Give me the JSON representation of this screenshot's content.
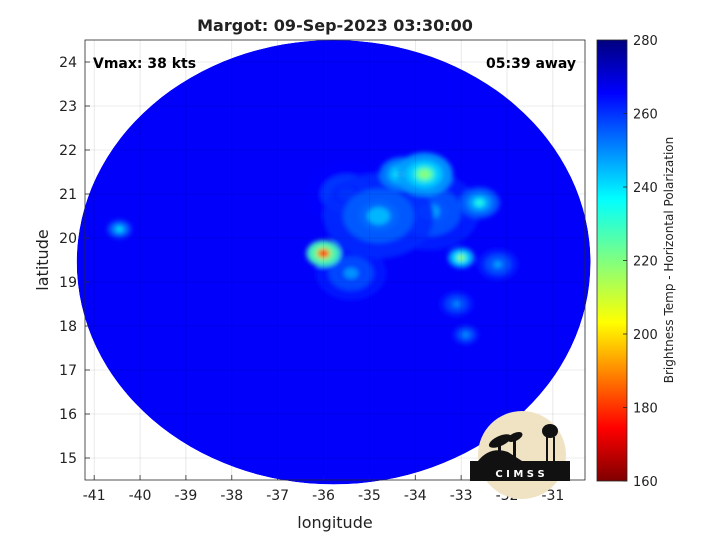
{
  "chart_data": {
    "type": "heatmap",
    "title": "Margot: 09-Sep-2023 03:30:00",
    "annotations": {
      "vmax": "Vmax: 38 kts",
      "time_away": "05:39 away"
    },
    "xlabel": "longitude",
    "ylabel": "latitude",
    "xlim": [
      -41.2,
      -30.3
    ],
    "ylim": [
      14.5,
      24.5
    ],
    "x_ticks": [
      -41,
      -40,
      -39,
      -38,
      -37,
      -36,
      -35,
      -34,
      -33,
      -32,
      -31
    ],
    "y_ticks": [
      15,
      16,
      17,
      18,
      19,
      20,
      21,
      22,
      23,
      24
    ],
    "grid": true,
    "swath": {
      "center": [
        -35.78,
        19.45
      ],
      "radius_x": 5.6,
      "radius_y": 5.05
    },
    "background_value": 266,
    "features": [
      {
        "lon": -36.0,
        "lat": 19.65,
        "value": 178,
        "spread": 0.17
      },
      {
        "lon": -33.8,
        "lat": 21.45,
        "value": 218,
        "spread": 0.28
      },
      {
        "lon": -34.3,
        "lat": 21.45,
        "value": 225,
        "spread": 0.22
      },
      {
        "lon": -33.0,
        "lat": 19.55,
        "value": 214,
        "spread": 0.13
      },
      {
        "lon": -32.6,
        "lat": 20.8,
        "value": 232,
        "spread": 0.2
      },
      {
        "lon": -40.45,
        "lat": 20.2,
        "value": 236,
        "spread": 0.12
      },
      {
        "lon": -34.8,
        "lat": 20.5,
        "value": 244,
        "spread": 0.55
      },
      {
        "lon": -33.7,
        "lat": 20.6,
        "value": 246,
        "spread": 0.5
      },
      {
        "lon": -35.4,
        "lat": 19.2,
        "value": 248,
        "spread": 0.35
      },
      {
        "lon": -32.2,
        "lat": 19.4,
        "value": 246,
        "spread": 0.2
      },
      {
        "lon": -32.9,
        "lat": 17.8,
        "value": 246,
        "spread": 0.13
      },
      {
        "lon": -33.1,
        "lat": 18.5,
        "value": 248,
        "spread": 0.17
      },
      {
        "lon": -35.5,
        "lat": 21.0,
        "value": 252,
        "spread": 0.4
      }
    ],
    "colorbar": {
      "label": "Brightness Temp - Horizontal Polarization",
      "range": [
        160,
        280
      ],
      "ticks": [
        160,
        180,
        200,
        220,
        240,
        260,
        280
      ]
    },
    "logo_text": "C I M S S"
  }
}
